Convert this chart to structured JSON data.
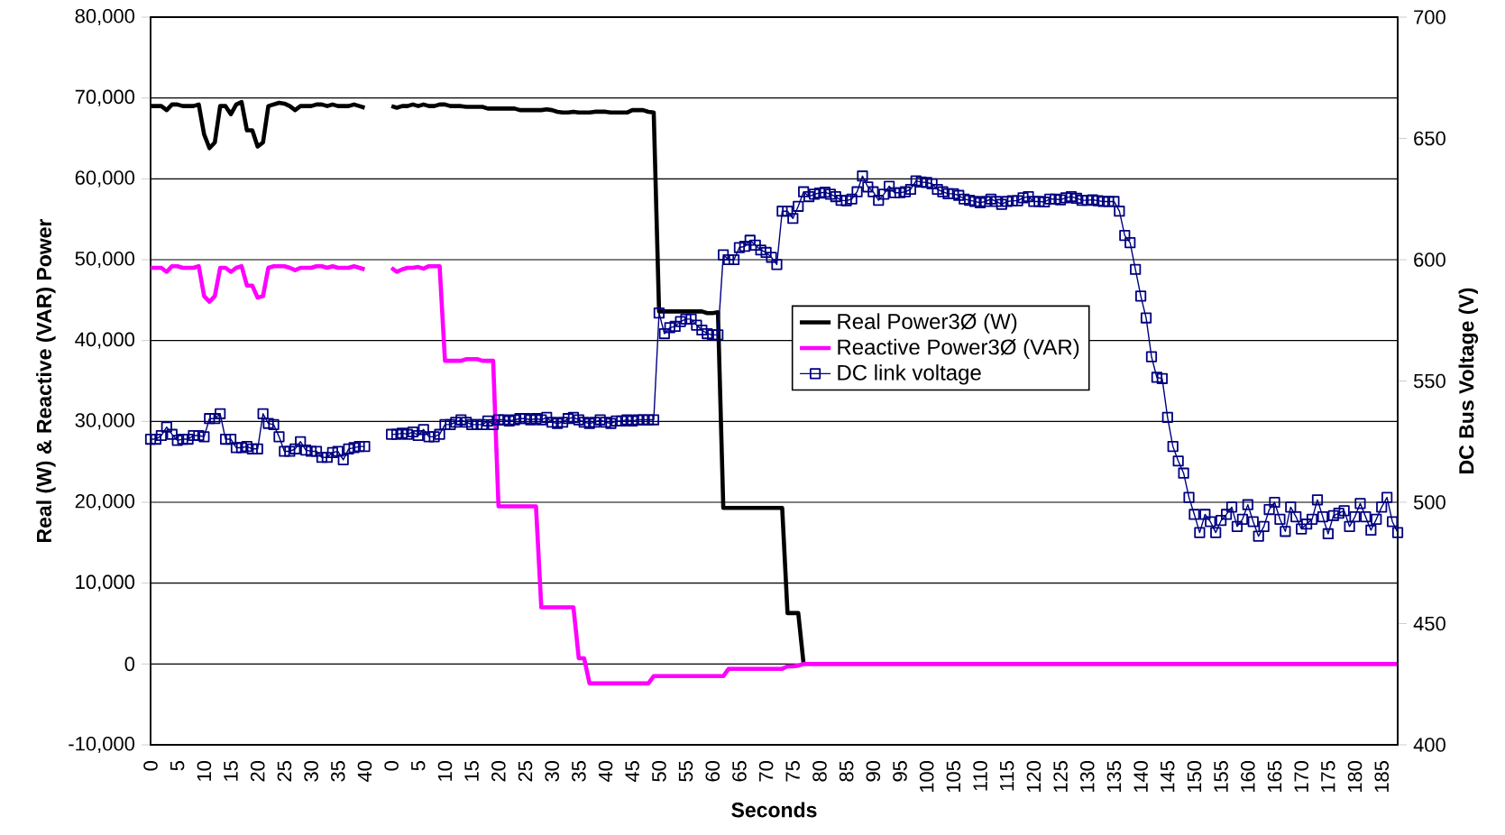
{
  "chart_data": {
    "type": "line",
    "xlabel": "Seconds",
    "ylabel": "Real (W) & Reactive (VAR) Power",
    "y2label": "DC Bus Voltage (V)",
    "categories": [
      "0",
      null,
      null,
      null,
      null,
      "5",
      null,
      null,
      null,
      null,
      "10",
      null,
      null,
      null,
      null,
      "15",
      null,
      null,
      null,
      null,
      "20",
      null,
      null,
      null,
      null,
      "25",
      null,
      null,
      null,
      null,
      "30",
      null,
      null,
      null,
      null,
      "35",
      null,
      null,
      null,
      null,
      "40",
      null,
      null,
      null,
      null,
      "0",
      null,
      null,
      null,
      null,
      "5",
      null,
      null,
      null,
      null,
      "10",
      null,
      null,
      null,
      null,
      "15",
      null,
      null,
      null,
      null,
      "20",
      null,
      null,
      null,
      null,
      "25",
      null,
      null,
      null,
      null,
      "30",
      null,
      null,
      null,
      null,
      "35",
      null,
      null,
      null,
      null,
      "40",
      null,
      null,
      null,
      null,
      "45",
      null,
      null,
      null,
      null,
      "50",
      null,
      null,
      null,
      null,
      "55",
      null,
      null,
      null,
      null,
      "60",
      null,
      null,
      null,
      null,
      "65",
      null,
      null,
      null,
      null,
      "70",
      null,
      null,
      null,
      null,
      "75",
      null,
      null,
      null,
      null,
      "80",
      null,
      null,
      null,
      null,
      "85",
      null,
      null,
      null,
      null,
      "90",
      null,
      null,
      null,
      null,
      "95",
      null,
      null,
      null,
      null,
      "100",
      null,
      null,
      null,
      null,
      "105",
      null,
      null,
      null,
      null,
      "110",
      null,
      null,
      null,
      null,
      "115",
      null,
      null,
      null,
      null,
      "120",
      null,
      null,
      null,
      null,
      "125",
      null,
      null,
      null,
      null,
      "130",
      null,
      null,
      null,
      null,
      "135",
      null,
      null,
      null,
      null,
      "140",
      null,
      null,
      null,
      null,
      "145",
      null,
      null,
      null,
      null,
      "150",
      null,
      null,
      null,
      null,
      "155",
      null,
      null,
      null,
      null,
      "160",
      null,
      null,
      null,
      null,
      "165",
      null,
      null,
      null,
      null,
      "170",
      null,
      null,
      null,
      null,
      "175",
      null,
      null,
      null,
      null,
      "180",
      null,
      null,
      null,
      null,
      "185",
      null,
      null,
      null
    ],
    "ylim": [
      -10000,
      80000
    ],
    "yticks": [
      {
        "value": -10000,
        "label": "-10,000"
      },
      0,
      {
        "value": 10000,
        "label": "10,000"
      },
      {
        "value": 20000,
        "label": "20,000"
      },
      {
        "value": 30000,
        "label": "30,000"
      },
      {
        "value": 40000,
        "label": "40,000"
      },
      {
        "value": 50000,
        "label": "50,000"
      },
      {
        "value": 60000,
        "label": "60,000"
      },
      {
        "value": 70000,
        "label": "70,000"
      },
      {
        "value": 80000,
        "label": "80,000"
      }
    ],
    "y2lim": [
      400,
      700
    ],
    "y2ticks": [
      400,
      450,
      500,
      550,
      600,
      650,
      700
    ],
    "grid": "y",
    "legend": "center",
    "series": [
      {
        "name": "Real Power3Ø (W)",
        "color": "#000000",
        "marker": "none",
        "values": [
          69000,
          69000,
          69000,
          68500,
          69200,
          69200,
          69000,
          69000,
          69000,
          69200,
          65500,
          63800,
          64500,
          69000,
          69000,
          68000,
          69200,
          69500,
          66000,
          66000,
          64000,
          64500,
          69000,
          69200,
          69400,
          69300,
          69000,
          68500,
          69000,
          69000,
          69000,
          69200,
          69200,
          69000,
          69200,
          69000,
          69000,
          69000,
          69200,
          69000,
          68800,
          null,
          null,
          null,
          null,
          69000,
          68800,
          69000,
          69000,
          69200,
          69000,
          69200,
          69000,
          69000,
          69200,
          69200,
          69000,
          69000,
          69000,
          68900,
          68900,
          68900,
          68900,
          68700,
          68700,
          68700,
          68700,
          68700,
          68700,
          68500,
          68500,
          68500,
          68500,
          68500,
          68600,
          68500,
          68300,
          68200,
          68200,
          68300,
          68200,
          68200,
          68200,
          68300,
          68300,
          68300,
          68200,
          68200,
          68200,
          68200,
          68500,
          68500,
          68500,
          68300,
          68200,
          43600,
          43600,
          43600,
          43600,
          43600,
          43600,
          43600,
          43600,
          43600,
          43400,
          43400,
          43500,
          19300,
          19300,
          19300,
          19300,
          19300,
          19300,
          19300,
          19300,
          19300,
          19300,
          19300,
          19300,
          6300,
          6300,
          6300,
          0,
          null,
          null,
          null,
          null,
          null,
          null,
          null,
          null,
          null,
          null,
          null,
          null,
          null,
          null,
          null,
          null,
          null,
          null,
          null,
          null,
          null,
          null,
          null,
          null,
          null,
          null,
          null,
          null,
          null,
          null,
          null,
          null,
          null,
          null,
          null,
          null,
          null,
          null,
          null,
          null,
          null,
          null,
          null,
          null,
          null,
          null,
          null,
          null,
          null,
          null,
          null,
          null,
          null,
          null,
          null,
          null,
          null,
          null,
          null,
          null,
          null,
          null,
          null,
          null,
          null,
          null,
          null,
          null,
          null,
          null,
          null,
          null,
          null,
          null,
          null,
          null,
          null,
          null,
          null,
          null,
          null,
          null,
          null,
          null,
          null,
          null,
          null,
          null,
          null,
          null,
          null,
          null,
          null,
          null,
          null,
          null,
          null,
          null,
          null,
          null,
          null,
          null,
          null,
          null,
          null,
          null,
          null,
          null,
          null,
          null,
          null
        ]
      },
      {
        "name": "Reactive Power3Ø (VAR)",
        "color": "#ff00ff",
        "marker": "none",
        "values": [
          49000,
          49000,
          49000,
          48500,
          49200,
          49200,
          49000,
          49000,
          49000,
          49200,
          45500,
          44800,
          45500,
          49000,
          49000,
          48500,
          49000,
          49200,
          46800,
          46800,
          45300,
          45500,
          49000,
          49200,
          49200,
          49200,
          49000,
          48700,
          49000,
          49000,
          49000,
          49200,
          49200,
          49000,
          49200,
          49000,
          49000,
          49000,
          49200,
          49000,
          48800,
          null,
          null,
          null,
          null,
          49000,
          48500,
          48800,
          49000,
          49000,
          49100,
          48900,
          49200,
          49200,
          49200,
          37500,
          37500,
          37500,
          37500,
          37700,
          37700,
          37700,
          37500,
          37500,
          37500,
          19500,
          19500,
          19500,
          19500,
          19500,
          19500,
          19500,
          19500,
          7000,
          7000,
          7000,
          7000,
          7000,
          7000,
          7000,
          700,
          700,
          -2400,
          -2400,
          -2400,
          -2400,
          -2400,
          -2400,
          -2400,
          -2400,
          -2400,
          -2400,
          -2400,
          -2400,
          -1500,
          -1500,
          -1500,
          -1500,
          -1500,
          -1500,
          -1500,
          -1500,
          -1500,
          -1500,
          -1500,
          -1500,
          -1500,
          -1500,
          -600,
          -600,
          -600,
          -600,
          -600,
          -600,
          -600,
          -600,
          -600,
          -600,
          -600,
          -300,
          -300,
          -200,
          0,
          0,
          0,
          0,
          0,
          0,
          0,
          0,
          0,
          0,
          0,
          0,
          0,
          0,
          0,
          0,
          0,
          0,
          0,
          0,
          0,
          0,
          0,
          0,
          0,
          0,
          0,
          0,
          0,
          0,
          0,
          0,
          0,
          0,
          0,
          0,
          0,
          0,
          0,
          0,
          0,
          0,
          0,
          0,
          0,
          0,
          0,
          0,
          0,
          0,
          0,
          0,
          0,
          0,
          0,
          0,
          0,
          0,
          0,
          0,
          0,
          0,
          0,
          0,
          0,
          0,
          0,
          0,
          0,
          0,
          0,
          0,
          0,
          0,
          0,
          0,
          0,
          0,
          0,
          0,
          0,
          0,
          0,
          0,
          0,
          0,
          0,
          0,
          0,
          0,
          0,
          0,
          0,
          0,
          0,
          0,
          0,
          0,
          0,
          0,
          0,
          0,
          0,
          0,
          0,
          0,
          0,
          0,
          0,
          0,
          0,
          0
        ]
      },
      {
        "name": "DC link voltage",
        "color": "#000080",
        "marker": "square",
        "axis": "y2",
        "values": [
          526,
          526,
          527.5,
          531,
          528,
          525.5,
          526,
          526,
          527.5,
          527.5,
          527,
          534.5,
          534.5,
          536.5,
          526,
          526,
          522.5,
          522.5,
          523,
          522,
          522,
          536.5,
          532.5,
          532,
          527,
          521,
          521,
          522,
          525,
          521.5,
          521,
          521,
          518.5,
          518.5,
          520.5,
          521,
          517.5,
          522,
          522.5,
          523,
          523,
          null,
          null,
          null,
          null,
          528,
          528,
          528.5,
          528,
          529,
          527.5,
          530,
          527,
          527,
          528,
          532,
          532,
          533,
          534,
          533,
          532,
          532,
          532,
          533.5,
          532,
          534,
          534,
          533.5,
          534,
          534.5,
          534.5,
          534,
          534.5,
          534,
          535,
          533,
          532.5,
          533,
          534.5,
          535,
          534,
          533,
          532.5,
          533,
          534,
          533,
          532.5,
          533.5,
          533.5,
          534,
          533.5,
          534,
          534,
          534,
          534,
          578,
          569.5,
          572,
          572.5,
          574.5,
          575.5,
          575.5,
          573,
          571,
          569.5,
          569,
          569,
          602,
          600,
          600,
          605,
          605.5,
          608,
          606,
          604,
          603,
          601,
          598,
          620,
          620,
          617,
          622,
          628,
          626,
          627,
          627.5,
          627.8,
          627,
          626,
          624.5,
          624.3,
          625,
          628,
          634.5,
          630,
          628,
          624.5,
          627,
          630.3,
          627.6,
          627.6,
          628,
          629,
          632.5,
          632,
          631.8,
          631.3,
          629,
          628,
          627.2,
          627.2,
          626.5,
          625,
          624.5,
          624,
          623.5,
          624,
          625,
          624,
          622.8,
          624,
          624.3,
          624.3,
          625.5,
          626,
          624,
          624,
          623.8,
          625,
          625,
          624.7,
          625.5,
          626,
          625.3,
          624.5,
          624.5,
          624.7,
          624.3,
          624,
          624,
          624,
          620,
          610,
          607,
          596,
          585,
          576,
          560,
          551.5,
          551,
          535,
          523,
          517,
          512,
          502,
          495,
          487.5,
          495,
          492,
          487.5,
          492.5,
          495,
          498,
          490,
          493,
          499,
          492,
          486,
          490,
          497,
          500,
          493,
          488,
          498,
          494,
          489,
          491,
          493,
          501,
          494,
          487,
          494.5,
          495.5,
          496.5,
          490,
          494,
          499.5,
          494,
          488.5,
          493,
          498,
          502,
          492,
          487.5
        ]
      }
    ]
  }
}
